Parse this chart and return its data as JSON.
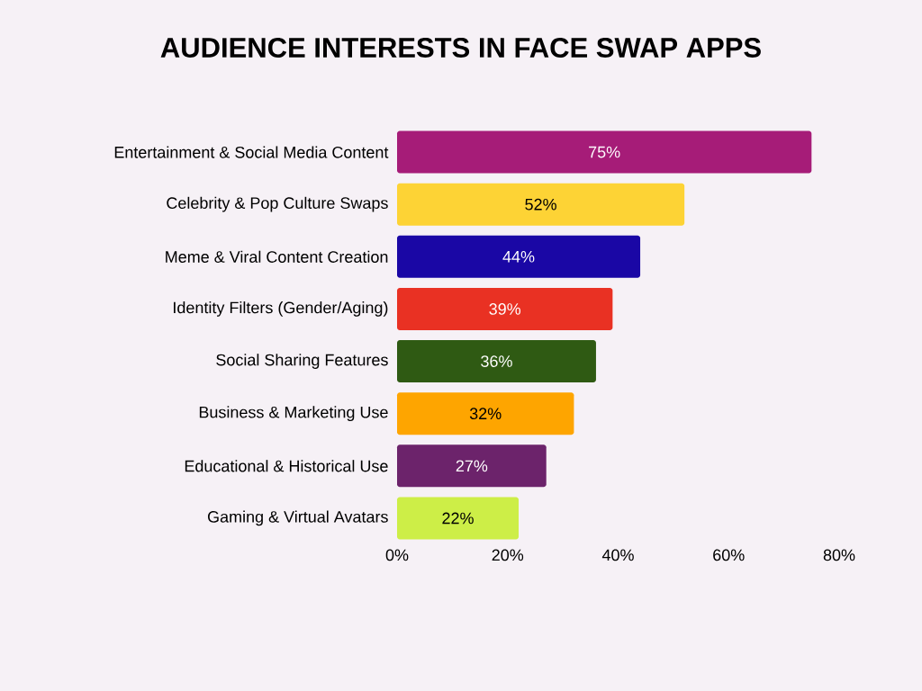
{
  "chart_data": {
    "type": "bar",
    "orientation": "horizontal",
    "title": "AUDIENCE INTERESTS IN FACE SWAP APPS",
    "categories": [
      "Entertainment & Social Media Content",
      "Celebrity & Pop Culture Swaps",
      "Meme & Viral Content Creation",
      "Identity Filters (Gender/Aging)",
      "Social Sharing Features",
      "Business & Marketing Use",
      "Educational & Historical Use",
      "Gaming & Virtual Avatars"
    ],
    "values": [
      75,
      52,
      44,
      39,
      36,
      32,
      27,
      22
    ],
    "colors": [
      "#a61c78",
      "#fdd335",
      "#1a07a5",
      "#e93123",
      "#2f5a13",
      "#fea500",
      "#6c236b",
      "#cdee47"
    ],
    "value_labels": [
      "75%",
      "52%",
      "44%",
      "39%",
      "36%",
      "32%",
      "27%",
      "22%"
    ],
    "xlim": [
      0,
      80
    ],
    "xticks": [
      {
        "value": 0,
        "label": "0%"
      },
      {
        "value": 20,
        "label": "20%"
      },
      {
        "value": 40,
        "label": "40%"
      },
      {
        "value": 60,
        "label": "60%"
      },
      {
        "value": 80,
        "label": "80%"
      }
    ],
    "grid": false
  }
}
